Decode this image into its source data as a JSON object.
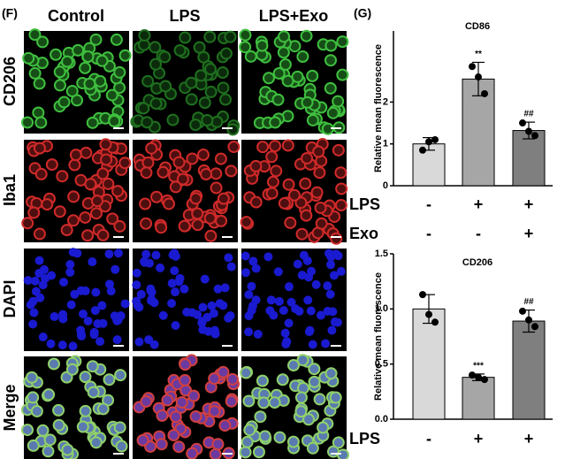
{
  "panel_f": {
    "label": "(F)",
    "columns": [
      "Control",
      "LPS",
      "LPS+Exo"
    ],
    "rows": [
      "CD206",
      "Iba1",
      "DAPI",
      "Merge"
    ]
  },
  "panel_g_label": "(G)",
  "chart_data": [
    {
      "type": "bar",
      "title": "CD86",
      "y_label": "Relative mean fluorescence",
      "ylim": [
        0,
        3.7
      ],
      "yticks": [
        0,
        1,
        2
      ],
      "colors": [
        "#d9d9d9",
        "#a6a6a6",
        "#7f7f7f"
      ],
      "values": [
        1.0,
        2.55,
        1.32
      ],
      "errors": [
        0.15,
        0.4,
        0.2
      ],
      "points": [
        [
          0.85,
          1.05,
          1.1
        ],
        [
          2.85,
          2.6,
          2.2
        ],
        [
          1.5,
          1.3,
          1.2
        ]
      ],
      "annotations": [
        null,
        "**",
        "##"
      ],
      "treatments": [
        {
          "name": "LPS",
          "signs": [
            "-",
            "+",
            "+"
          ]
        },
        {
          "name": "Exo",
          "signs": [
            "-",
            "-",
            "+"
          ]
        }
      ]
    },
    {
      "type": "bar",
      "title": "CD206",
      "y_label": "Relative mean fluorescence",
      "ylim": [
        0,
        1.5
      ],
      "yticks": [
        {
          "value": 0,
          "label": "0.0"
        },
        {
          "value": 0.5,
          "label": "0.5"
        },
        {
          "value": 1,
          "label": "1.0"
        },
        {
          "value": 1.5,
          "label": "1.5"
        }
      ],
      "colors": [
        "#d9d9d9",
        "#a6a6a6",
        "#7f7f7f"
      ],
      "values": [
        1.0,
        0.38,
        0.89
      ],
      "errors": [
        0.13,
        0.03,
        0.1
      ],
      "points": [
        [
          1.13,
          0.95,
          0.88
        ],
        [
          0.4,
          0.38,
          0.36
        ],
        [
          0.98,
          0.9,
          0.84
        ]
      ],
      "annotations": [
        null,
        "***",
        "##"
      ],
      "treatments": [
        {
          "name": "LPS",
          "signs": [
            "-",
            "+",
            "+"
          ]
        }
      ]
    }
  ]
}
